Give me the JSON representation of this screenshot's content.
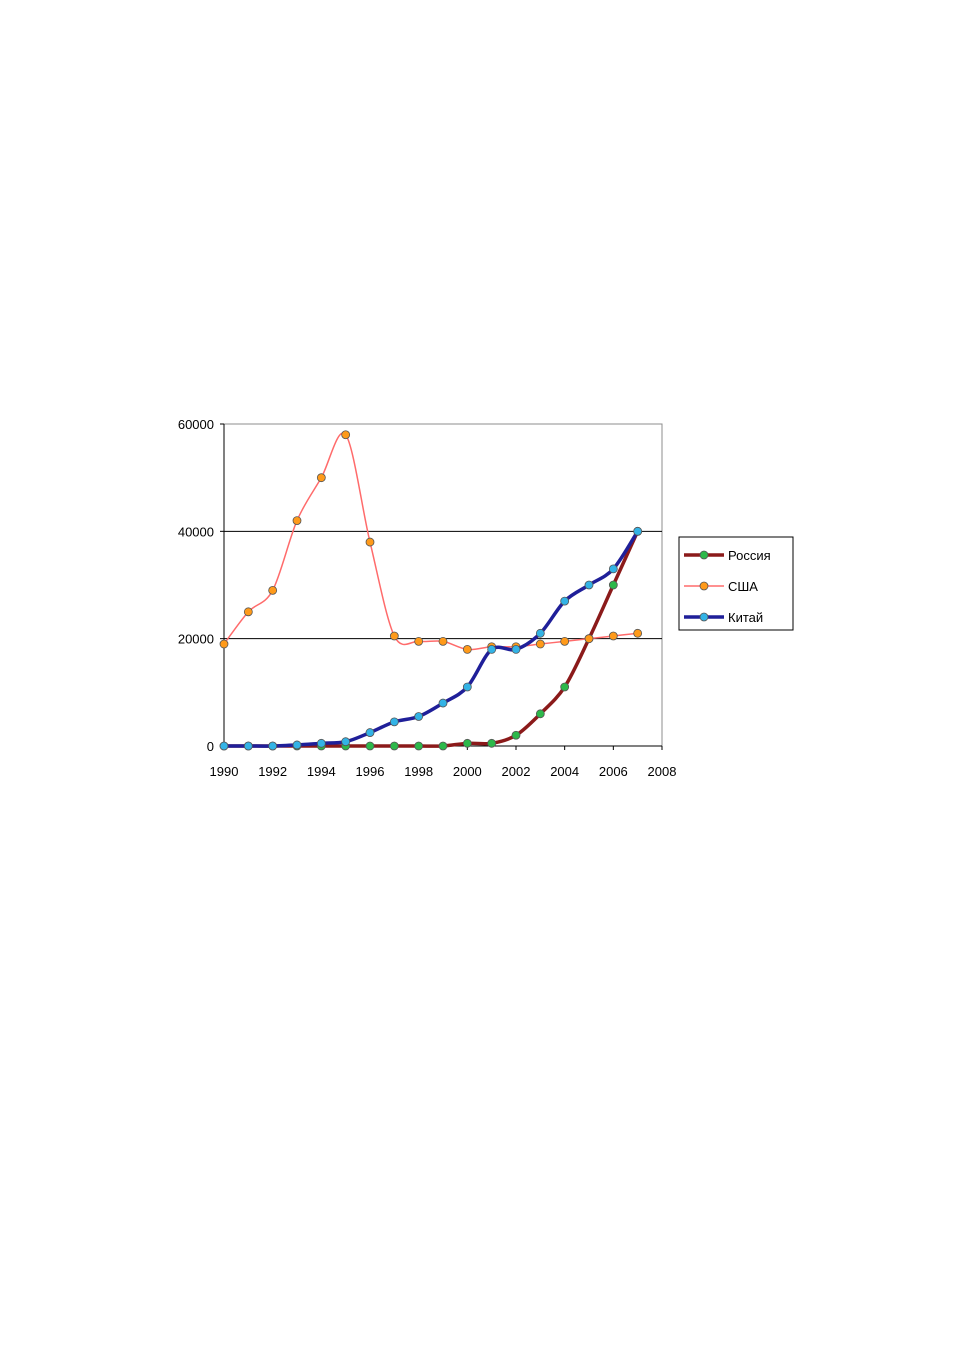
{
  "chart_data": {
    "type": "line",
    "title": "",
    "xlabel": "",
    "ylabel": "",
    "xlim": [
      1990,
      2008
    ],
    "ylim": [
      0,
      60000
    ],
    "x_ticks": [
      "1990",
      "1992",
      "1994",
      "1996",
      "1998",
      "2000",
      "2002",
      "2004",
      "2006",
      "2008"
    ],
    "y_ticks": [
      "0",
      "20000",
      "40000",
      "60000"
    ],
    "grid": "horizontal major lines at 20000 and 40000",
    "legend_position": "right",
    "x": [
      1990,
      1991,
      1992,
      1993,
      1994,
      1995,
      1996,
      1997,
      1998,
      1999,
      2000,
      2001,
      2002,
      2003,
      2004,
      2005,
      2006,
      2007
    ],
    "series": [
      {
        "name": "Россия",
        "color": "#8b1a1a",
        "marker_color": "#2db84a",
        "values": [
          0,
          0,
          0,
          0,
          0,
          0,
          0,
          0,
          0,
          0,
          500,
          500,
          2000,
          6000,
          11000,
          20000,
          30000,
          40000
        ]
      },
      {
        "name": "США",
        "color": "#ff6b6b",
        "marker_color": "#ff9a1a",
        "values": [
          19000,
          25000,
          29000,
          42000,
          50000,
          58000,
          38000,
          20500,
          19500,
          19500,
          18000,
          18500,
          18500,
          19000,
          19500,
          20000,
          20500,
          21000
        ]
      },
      {
        "name": "Китай",
        "color": "#1f1f99",
        "marker_color": "#33b3e6",
        "values": [
          0,
          0,
          0,
          200,
          500,
          800,
          2500,
          4500,
          5500,
          8000,
          11000,
          18000,
          18000,
          21000,
          27000,
          30000,
          33000,
          40000
        ]
      }
    ]
  }
}
